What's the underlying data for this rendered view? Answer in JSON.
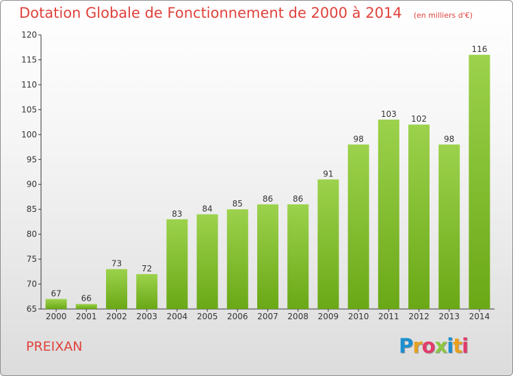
{
  "title": "Dotation Globale de Fonctionnement de 2000 à 2014",
  "subtitle": "(en milliers d'€)",
  "place_name": "PREIXAN",
  "logo": {
    "text": "Proxiti",
    "colors": [
      "#1c8fd0",
      "#e8a01e",
      "#e23b6b",
      "#8cc63f",
      "#1c8fd0",
      "#e8a01e",
      "#e23b6b"
    ]
  },
  "colors": {
    "bar_light": "#9cd24c",
    "bar_dark": "#6aa816",
    "title": "#e0413b"
  },
  "chart_data": {
    "type": "bar",
    "title": "Dotation Globale de Fonctionnement de 2000 à 2014",
    "subtitle": "(en milliers d'€)",
    "categories": [
      "2000",
      "2001",
      "2002",
      "2003",
      "2004",
      "2005",
      "2006",
      "2007",
      "2008",
      "2009",
      "2010",
      "2011",
      "2012",
      "2013",
      "2014"
    ],
    "values": [
      67,
      66,
      73,
      72,
      83,
      84,
      85,
      86,
      86,
      91,
      98,
      103,
      102,
      98,
      116
    ],
    "ylim": [
      65,
      120
    ],
    "yticks": [
      65,
      70,
      75,
      80,
      85,
      90,
      95,
      100,
      105,
      110,
      115,
      120
    ],
    "grid": false,
    "legend": "none"
  }
}
